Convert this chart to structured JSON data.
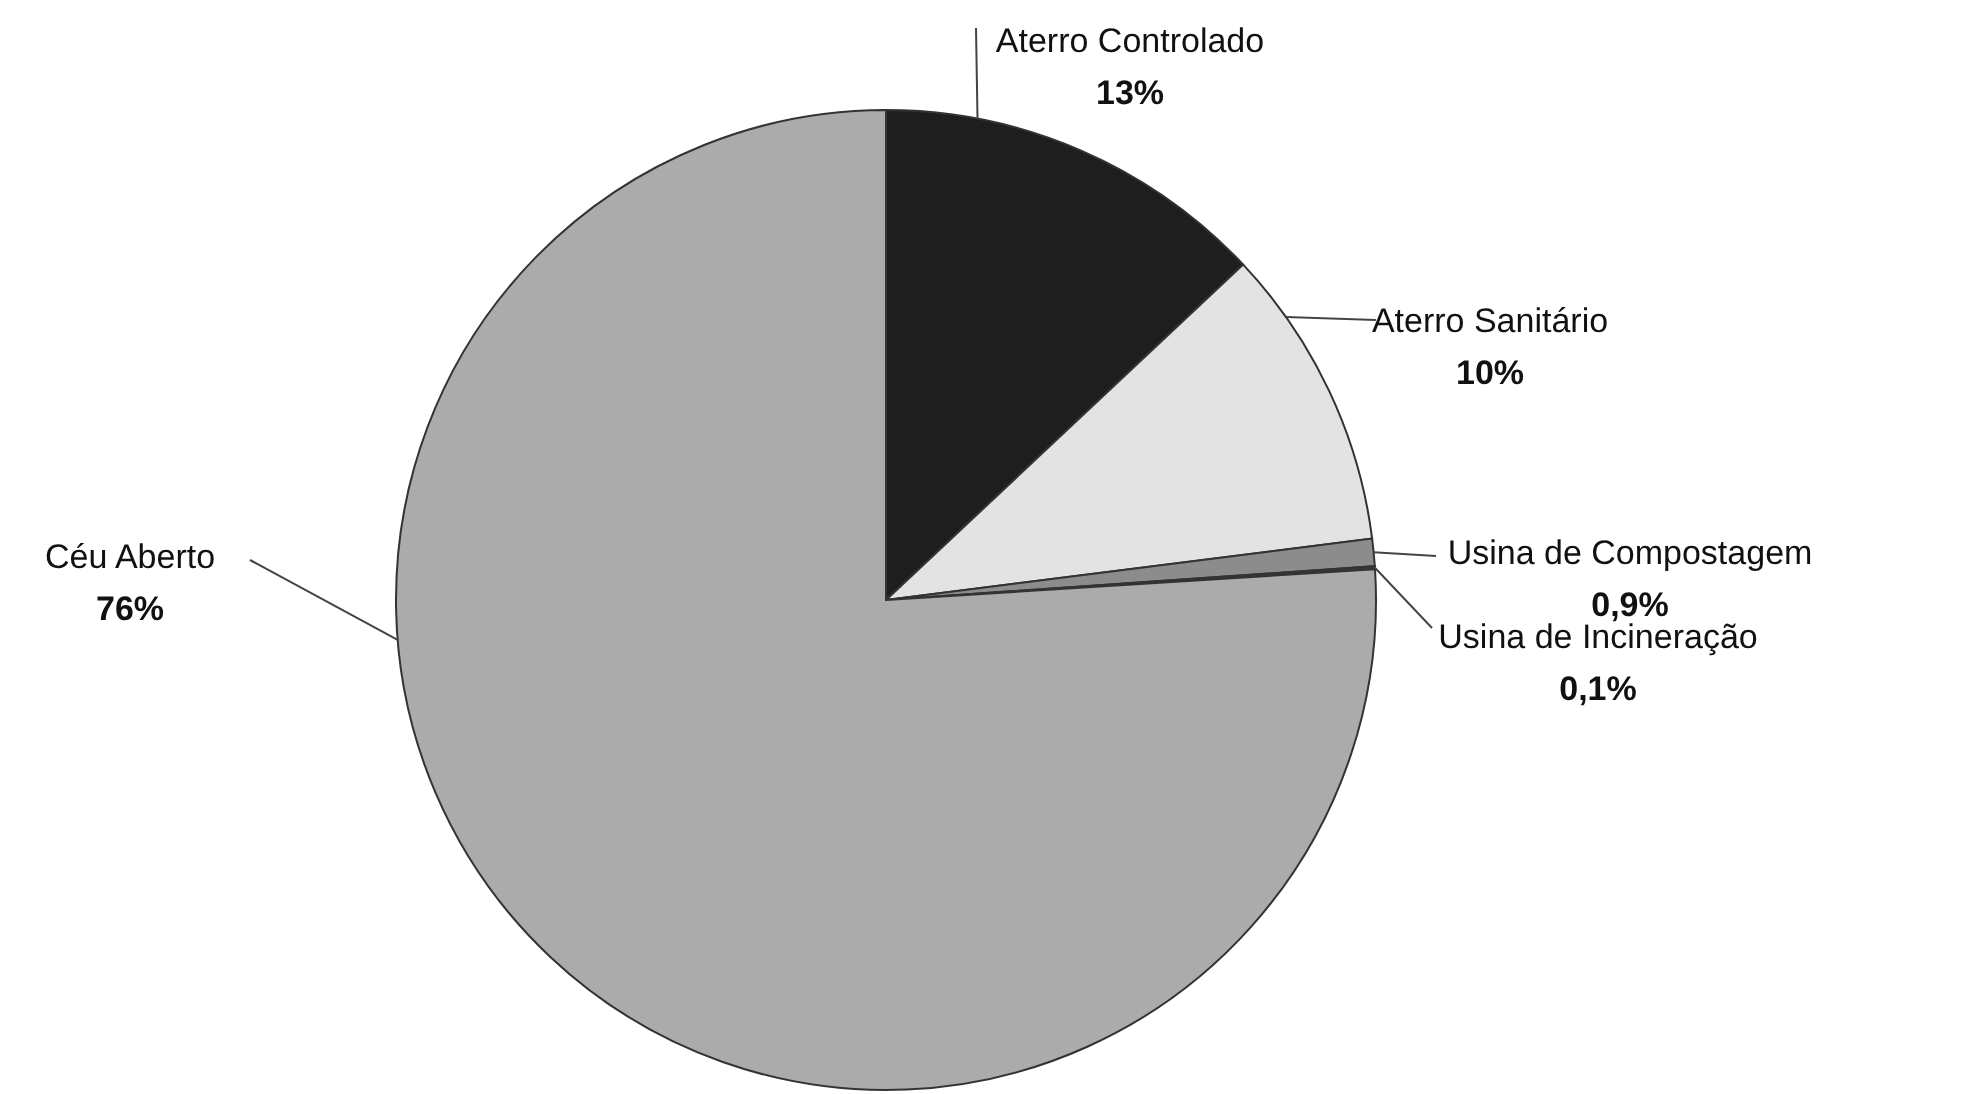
{
  "chart_data": {
    "type": "pie",
    "categories": [
      "Aterro Controlado",
      "Aterro Sanitário",
      "Usina de Compostagem",
      "Usina de Incineração",
      "Céu Aberto"
    ],
    "values": [
      13,
      10,
      0.9,
      0.1,
      76
    ],
    "value_labels": [
      "13%",
      "10%",
      "0,9%",
      "0,1%",
      "76%"
    ],
    "colors": [
      "#1e1e1e",
      "#e3e3e3",
      "#8c8c8c",
      "#3a3a3a",
      "#ababab"
    ]
  }
}
